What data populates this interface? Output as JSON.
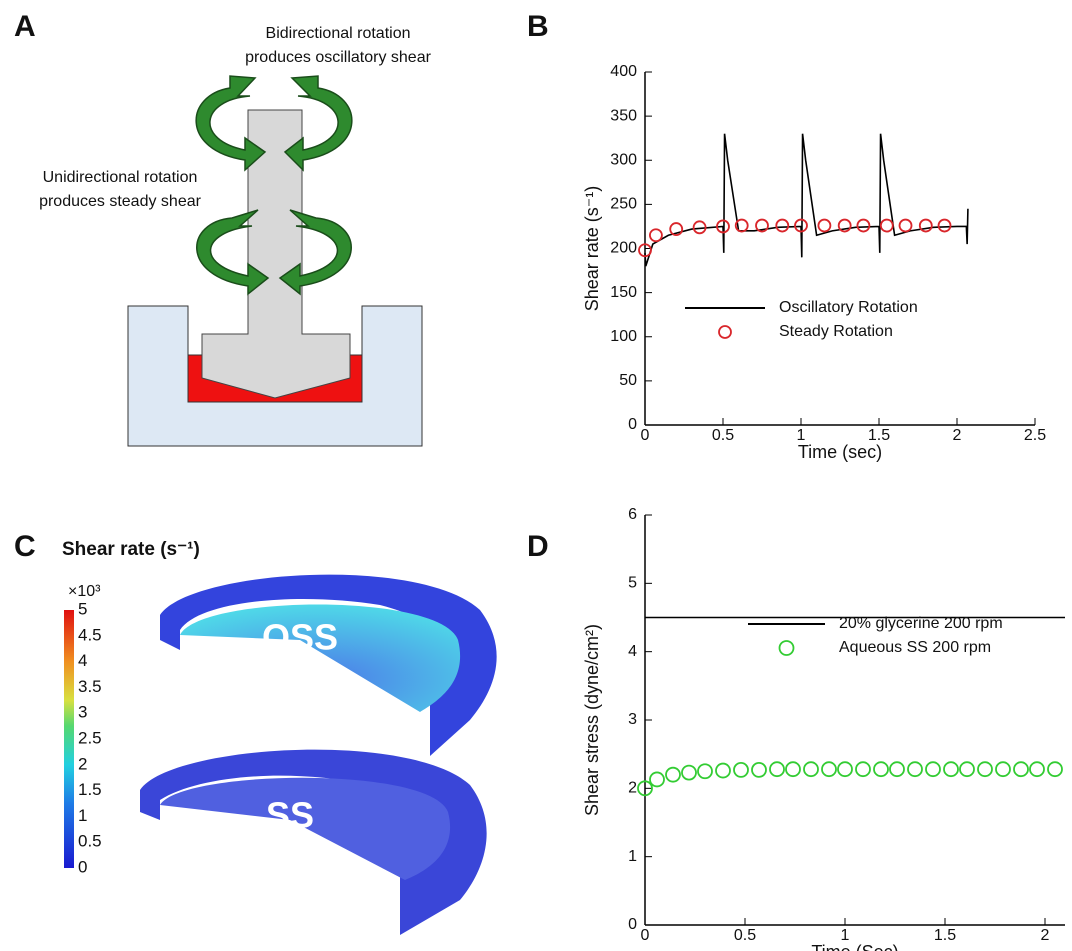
{
  "panels": {
    "a": {
      "label": "A",
      "top_caption": [
        "Bidirectional rotation",
        "produces oscillatory shear"
      ],
      "side_caption": [
        "Unidirectional rotation",
        "produces steady shear"
      ]
    },
    "c": {
      "label": "C",
      "title": "Shear rate (s⁻¹)",
      "multiplier": "×10³",
      "colorbar_ticks": [
        5,
        4.5,
        4,
        3.5,
        3,
        2.5,
        2,
        1.5,
        1,
        0.5,
        0
      ],
      "labels": [
        "OSS",
        "SS"
      ]
    }
  },
  "chart_data": [
    {
      "type": "line",
      "panel": "B",
      "xlabel": "Time (sec)",
      "ylabel": "Shear rate (s⁻¹)",
      "xlim": [
        0,
        2.5
      ],
      "xticks": [
        0,
        0.5,
        1,
        1.5,
        2,
        2.5
      ],
      "ylim": [
        0,
        400
      ],
      "yticks": [
        0,
        50,
        100,
        150,
        200,
        250,
        300,
        350,
        400
      ],
      "series": [
        {
          "name": "Oscillatory Rotation",
          "color": "#000000",
          "marker": "line",
          "x": [
            0,
            0.005,
            0.05,
            0.15,
            0.3,
            0.5,
            0.505,
            0.51,
            0.53,
            0.6,
            0.7,
            0.85,
            1.0,
            1.005,
            1.01,
            1.03,
            1.1,
            1.2,
            1.35,
            1.5,
            1.505,
            1.51,
            1.53,
            1.6,
            1.7,
            1.85,
            2.0,
            2.06,
            2.065,
            2.07
          ],
          "values": [
            195,
            180,
            205,
            215,
            222,
            225,
            195,
            330,
            300,
            220,
            220,
            224,
            225,
            190,
            330,
            300,
            215,
            220,
            224,
            225,
            195,
            330,
            300,
            215,
            220,
            224,
            225,
            225,
            205,
            245
          ]
        },
        {
          "name": "Steady Rotation",
          "color": "#d9262b",
          "marker": "circle",
          "x": [
            0,
            0.07,
            0.2,
            0.35,
            0.5,
            0.62,
            0.75,
            0.88,
            1.0,
            1.15,
            1.28,
            1.4,
            1.55,
            1.67,
            1.8,
            1.92
          ],
          "values": [
            198,
            215,
            222,
            224,
            225,
            226,
            226,
            226,
            226,
            226,
            226,
            226,
            226,
            226,
            226,
            226
          ]
        }
      ]
    },
    {
      "type": "line",
      "panel": "D",
      "xlabel": "Time (Sec)",
      "ylabel": "Shear stress (dyne/cm²)",
      "xlim": [
        0,
        2.1
      ],
      "xticks": [
        0,
        0.5,
        1,
        1.5,
        2
      ],
      "ylim": [
        0,
        6
      ],
      "yticks": [
        0,
        1,
        2,
        3,
        4,
        5,
        6
      ],
      "series": [
        {
          "name": "20% glycerine 200 rpm",
          "color": "#000000",
          "marker": "line",
          "x": [
            0,
            2.1
          ],
          "values": [
            4.5,
            4.5
          ]
        },
        {
          "name": "Aqueous SS 200 rpm",
          "color": "#33cc33",
          "marker": "circle",
          "x": [
            0,
            0.06,
            0.14,
            0.22,
            0.3,
            0.39,
            0.48,
            0.57,
            0.66,
            0.74,
            0.83,
            0.92,
            1.0,
            1.09,
            1.18,
            1.26,
            1.35,
            1.44,
            1.53,
            1.61,
            1.7,
            1.79,
            1.88,
            1.96,
            2.05
          ],
          "values": [
            2.0,
            2.13,
            2.2,
            2.23,
            2.25,
            2.26,
            2.27,
            2.27,
            2.28,
            2.28,
            2.28,
            2.28,
            2.28,
            2.28,
            2.28,
            2.28,
            2.28,
            2.28,
            2.28,
            2.28,
            2.28,
            2.28,
            2.28,
            2.28,
            2.28
          ]
        }
      ]
    }
  ]
}
